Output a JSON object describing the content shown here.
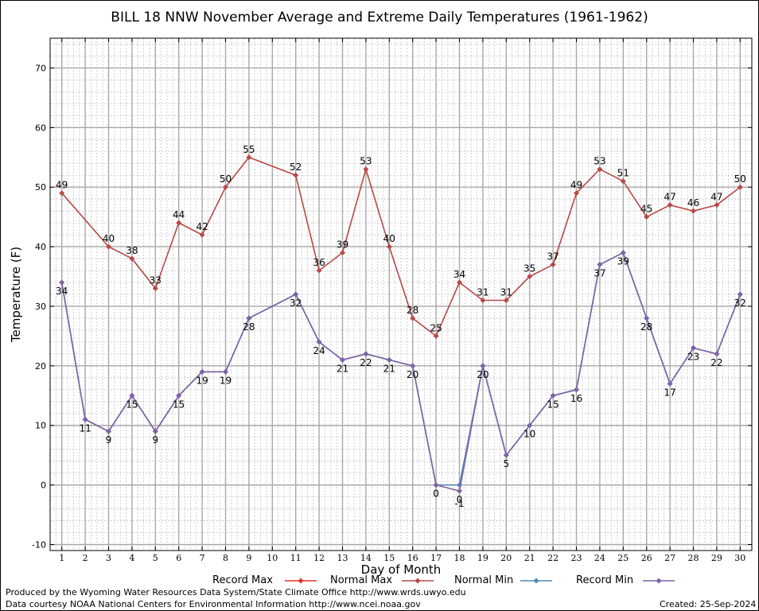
{
  "chart_data": {
    "type": "line",
    "title": "BILL 18 NNW November Average and Extreme Daily Temperatures (1961-1962)",
    "xlabel": "Day of Month",
    "ylabel": "Temperature (F)",
    "xlim": [
      0.5,
      30.5
    ],
    "ylim": [
      -11,
      75
    ],
    "x_ticks": [
      1,
      2,
      3,
      4,
      5,
      6,
      7,
      8,
      9,
      10,
      11,
      12,
      13,
      14,
      15,
      16,
      17,
      18,
      19,
      20,
      21,
      22,
      23,
      24,
      25,
      26,
      27,
      28,
      29,
      30
    ],
    "y_ticks": [
      -10,
      0,
      10,
      20,
      30,
      40,
      50,
      60,
      70
    ],
    "grid": true,
    "legend_placement": "bottom",
    "legend": [
      {
        "name": "Record Max",
        "color": "#e8312a"
      },
      {
        "name": "Normal Max",
        "color": "#b84848"
      },
      {
        "name": "Normal Min",
        "color": "#4f87b5"
      },
      {
        "name": "Record Min",
        "color": "#7f62a6"
      }
    ],
    "series": [
      {
        "name": "Normal Max",
        "color": "#b84848",
        "x": [
          1,
          3,
          4,
          5,
          6,
          7,
          8,
          9,
          11,
          12,
          13,
          14,
          15,
          16,
          17,
          18,
          19,
          20,
          21,
          22,
          23,
          24,
          25,
          26,
          27,
          28,
          29,
          30
        ],
        "values": [
          49,
          40,
          38,
          33,
          44,
          42,
          50,
          55,
          52,
          36,
          39,
          53,
          40,
          28,
          25,
          34,
          31,
          31,
          35,
          37,
          49,
          53,
          51,
          45,
          47,
          46,
          47,
          50
        ]
      },
      {
        "name": "Normal Min",
        "color": "#4f87b5",
        "x": [
          1,
          2,
          3,
          4,
          5,
          6,
          7,
          8,
          9,
          11,
          12,
          13,
          14,
          15,
          16,
          17,
          18,
          19,
          20,
          21,
          22,
          23,
          24,
          25,
          26,
          27,
          28,
          29,
          30
        ],
        "values": [
          34,
          11,
          9,
          15,
          9,
          15,
          19,
          19,
          28,
          32,
          24,
          21,
          22,
          21,
          20,
          0,
          0,
          20,
          5,
          10,
          15,
          16,
          37,
          39,
          28,
          17,
          23,
          22,
          32
        ]
      },
      {
        "name": "Record Min",
        "color": "#7f62a6",
        "x": [
          1,
          2,
          3,
          4,
          5,
          6,
          7,
          8,
          9,
          11,
          12,
          13,
          14,
          15,
          16,
          17,
          18,
          19,
          20,
          21,
          22,
          23,
          24,
          25,
          26,
          27,
          28,
          29,
          30
        ],
        "values": [
          34,
          11,
          9,
          15,
          9,
          15,
          19,
          19,
          28,
          32,
          24,
          21,
          22,
          21,
          20,
          0,
          -1,
          20,
          5,
          10,
          15,
          16,
          37,
          39,
          28,
          17,
          23,
          22,
          32
        ]
      }
    ],
    "data_labels": {
      "max": [
        {
          "x": 1,
          "text": "49"
        },
        {
          "x": 3,
          "text": "40"
        },
        {
          "x": 4,
          "text": "38"
        },
        {
          "x": 5,
          "text": "33"
        },
        {
          "x": 6,
          "text": "44"
        },
        {
          "x": 7,
          "text": "42"
        },
        {
          "x": 8,
          "text": "50"
        },
        {
          "x": 9,
          "text": "55"
        },
        {
          "x": 11,
          "text": "52"
        },
        {
          "x": 12,
          "text": "36"
        },
        {
          "x": 13,
          "text": "39"
        },
        {
          "x": 14,
          "text": "53"
        },
        {
          "x": 15,
          "text": "40"
        },
        {
          "x": 16,
          "text": "28"
        },
        {
          "x": 17,
          "text": "25"
        },
        {
          "x": 18,
          "text": "34"
        },
        {
          "x": 19,
          "text": "31"
        },
        {
          "x": 20,
          "text": "31"
        },
        {
          "x": 21,
          "text": "35"
        },
        {
          "x": 22,
          "text": "37"
        },
        {
          "x": 23,
          "text": "49"
        },
        {
          "x": 24,
          "text": "53"
        },
        {
          "x": 25,
          "text": "51"
        },
        {
          "x": 26,
          "text": "45"
        },
        {
          "x": 27,
          "text": "47"
        },
        {
          "x": 28,
          "text": "46"
        },
        {
          "x": 29,
          "text": "47"
        },
        {
          "x": 30,
          "text": "50"
        }
      ],
      "min": [
        {
          "x": 1,
          "text": "34"
        },
        {
          "x": 2,
          "text": "11"
        },
        {
          "x": 3,
          "text": "9"
        },
        {
          "x": 4,
          "text": "15"
        },
        {
          "x": 5,
          "text": "9"
        },
        {
          "x": 6,
          "text": "15"
        },
        {
          "x": 7,
          "text": "19"
        },
        {
          "x": 8,
          "text": "19"
        },
        {
          "x": 9,
          "text": "28"
        },
        {
          "x": 11,
          "text": "32"
        },
        {
          "x": 12,
          "text": "24"
        },
        {
          "x": 13,
          "text": "21"
        },
        {
          "x": 14,
          "text": "22"
        },
        {
          "x": 15,
          "text": "21"
        },
        {
          "x": 16,
          "text": "20"
        },
        {
          "x": 17,
          "text": "0"
        },
        {
          "x": 18,
          "text": "0"
        },
        {
          "x": 18,
          "text": "-1"
        },
        {
          "x": 19,
          "text": "20"
        },
        {
          "x": 20,
          "text": "5"
        },
        {
          "x": 21,
          "text": "10"
        },
        {
          "x": 22,
          "text": "15"
        },
        {
          "x": 23,
          "text": "16"
        },
        {
          "x": 24,
          "text": "37"
        },
        {
          "x": 25,
          "text": "39"
        },
        {
          "x": 26,
          "text": "28"
        },
        {
          "x": 27,
          "text": "17"
        },
        {
          "x": 28,
          "text": "23"
        },
        {
          "x": 29,
          "text": "22"
        },
        {
          "x": 30,
          "text": "32"
        }
      ]
    }
  },
  "credits": {
    "produced_by": "Produced by the Wyoming Water Resources Data System/State Climate Office http://www.wrds.uwyo.edu",
    "data_courtesy": "Data courtesy NOAA National Centers for Environmental Information http://www.ncei.noaa.gov",
    "created": "Created:  25-Sep-2024"
  }
}
